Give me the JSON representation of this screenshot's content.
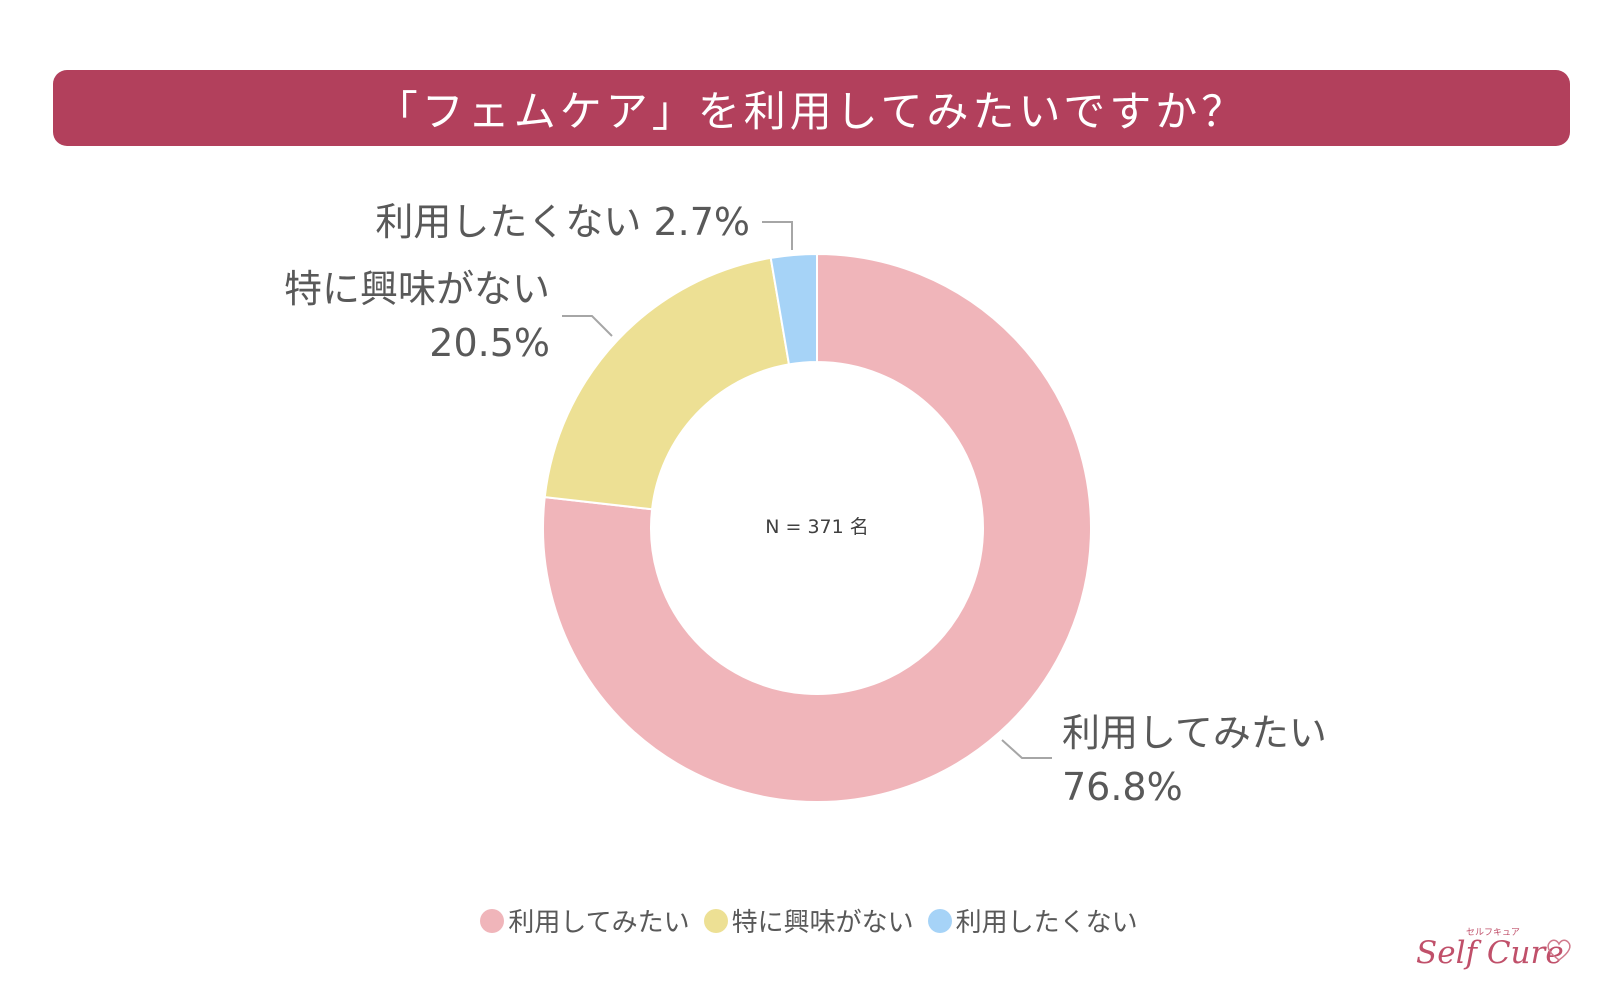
{
  "header": {
    "title": "「フェムケア」を利用してみたいですか？"
  },
  "chart_data": {
    "type": "pie",
    "variant": "donut",
    "categories": [
      "利用してみたい",
      "特に興味がない",
      "利用したくない"
    ],
    "values": [
      76.8,
      20.5,
      2.7
    ],
    "unit": "%",
    "colors": [
      "#f0b5ba",
      "#ede094",
      "#a6d3f7"
    ],
    "center_label": "N = 371 名",
    "data_labels": [
      {
        "name": "利用してみたい",
        "value": "76.8%"
      },
      {
        "name": "特に興味がない",
        "value": "20.5%"
      },
      {
        "name": "利用したくない",
        "value": "2.7%"
      }
    ],
    "legend_position": "bottom"
  },
  "logo": {
    "small_text": "セルフキュア",
    "main_text": "Self Cure"
  }
}
